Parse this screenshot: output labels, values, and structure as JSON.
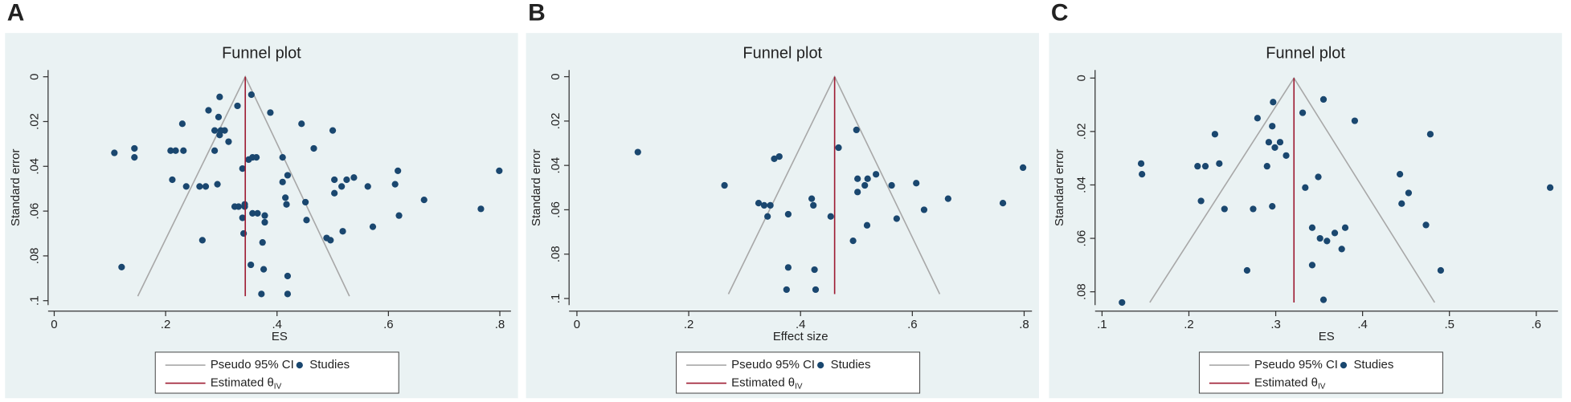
{
  "chart_data": [
    {
      "type": "scatter",
      "panel_label": "A",
      "title": "Funnel plot",
      "xlabel": "ES",
      "ylabel": "Standard error",
      "xlim": [
        -0.011,
        0.82
      ],
      "ylim": [
        0.102,
        -0.003
      ],
      "xticks": [
        0,
        {
          "value": 0.2,
          "label": ".2"
        },
        {
          "value": 0.4,
          "label": ".4"
        },
        {
          "value": 0.6,
          "label": ".6"
        },
        {
          "value": 0.8,
          "label": ".8"
        }
      ],
      "yticks": [
        0,
        {
          "value": 0.02,
          "label": ".02"
        },
        {
          "value": 0.04,
          "label": ".04"
        },
        {
          "value": 0.06,
          "label": ".06"
        },
        {
          "value": 0.08,
          "label": ".08"
        },
        {
          "value": 0.1,
          "label": ".1"
        }
      ],
      "legend": "bottom",
      "series": [
        {
          "name": "Pseudo 95% CI",
          "type": "line",
          "color": "#a8a8a8",
          "x": [
            0.15,
            0.343,
            0.53
          ],
          "values": [
            0.098,
            0,
            0.098
          ]
        },
        {
          "name": "Studies",
          "type": "scatter",
          "color": "#1a476f",
          "x": [
            0.108,
            0.144,
            0.144,
            0.209,
            0.218,
            0.232,
            0.23,
            0.212,
            0.237,
            0.261,
            0.272,
            0.293,
            0.277,
            0.297,
            0.295,
            0.288,
            0.299,
            0.306,
            0.297,
            0.288,
            0.313,
            0.329,
            0.354,
            0.388,
            0.324,
            0.331,
            0.342,
            0.342,
            0.338,
            0.34,
            0.338,
            0.356,
            0.349,
            0.363,
            0.356,
            0.365,
            0.378,
            0.378,
            0.374,
            0.353,
            0.376,
            0.372,
            0.419,
            0.419,
            0.41,
            0.419,
            0.41,
            0.415,
            0.417,
            0.451,
            0.453,
            0.444,
            0.466,
            0.489,
            0.496,
            0.518,
            0.5,
            0.503,
            0.503,
            0.516,
            0.525,
            0.538,
            0.563,
            0.572,
            0.612,
            0.617,
            0.619,
            0.664,
            0.766,
            0.799,
            0.121,
            0.266
          ],
          "values": [
            0.034,
            0.032,
            0.036,
            0.033,
            0.033,
            0.033,
            0.021,
            0.046,
            0.049,
            0.049,
            0.049,
            0.048,
            0.015,
            0.009,
            0.018,
            0.024,
            0.024,
            0.024,
            0.026,
            0.033,
            0.029,
            0.013,
            0.008,
            0.016,
            0.058,
            0.058,
            0.058,
            0.057,
            0.063,
            0.07,
            0.041,
            0.036,
            0.037,
            0.036,
            0.061,
            0.061,
            0.062,
            0.065,
            0.074,
            0.084,
            0.086,
            0.097,
            0.089,
            0.097,
            0.036,
            0.044,
            0.047,
            0.054,
            0.057,
            0.056,
            0.064,
            0.021,
            0.032,
            0.072,
            0.073,
            0.069,
            0.024,
            0.046,
            0.052,
            0.049,
            0.046,
            0.045,
            0.049,
            0.067,
            0.048,
            0.042,
            0.062,
            0.055,
            0.059,
            0.042,
            0.085,
            0.073
          ]
        },
        {
          "name": "Estimated θ",
          "subscript": "IV",
          "type": "line",
          "color": "#9e1b32",
          "x": [
            0.343,
            0.343
          ],
          "values": [
            0,
            0.098
          ]
        }
      ]
    },
    {
      "type": "scatter",
      "panel_label": "B",
      "title": "Funnel plot",
      "xlabel": "Effect size",
      "ylabel": "Standard error",
      "xlim": [
        -0.014,
        0.814
      ],
      "ylim": [
        0.103,
        -0.003
      ],
      "xticks": [
        0,
        {
          "value": 0.2,
          "label": ".2"
        },
        {
          "value": 0.4,
          "label": ".4"
        },
        {
          "value": 0.6,
          "label": ".6"
        },
        {
          "value": 0.8,
          "label": ".8"
        }
      ],
      "yticks": [
        0,
        {
          "value": 0.02,
          "label": ".02"
        },
        {
          "value": 0.04,
          "label": ".04"
        },
        {
          "value": 0.06,
          "label": ".06"
        },
        {
          "value": 0.08,
          "label": ".08"
        },
        {
          "value": 0.1,
          "label": ".1"
        }
      ],
      "legend": "bottom",
      "series": [
        {
          "name": "Pseudo 95% CI",
          "type": "line",
          "color": "#a8a8a8",
          "x": [
            0.271,
            0.461,
            0.649
          ],
          "values": [
            0.098,
            0,
            0.098
          ]
        },
        {
          "name": "Studies",
          "type": "scatter",
          "color": "#1a476f",
          "x": [
            0.109,
            0.264,
            0.325,
            0.335,
            0.346,
            0.341,
            0.353,
            0.362,
            0.378,
            0.42,
            0.423,
            0.378,
            0.375,
            0.425,
            0.427,
            0.454,
            0.468,
            0.5,
            0.502,
            0.502,
            0.515,
            0.52,
            0.535,
            0.494,
            0.519,
            0.563,
            0.572,
            0.607,
            0.621,
            0.664,
            0.762,
            0.798
          ],
          "values": [
            0.034,
            0.049,
            0.057,
            0.058,
            0.058,
            0.063,
            0.037,
            0.036,
            0.062,
            0.055,
            0.058,
            0.086,
            0.096,
            0.087,
            0.096,
            0.063,
            0.032,
            0.024,
            0.046,
            0.052,
            0.049,
            0.046,
            0.044,
            0.074,
            0.067,
            0.049,
            0.064,
            0.048,
            0.06,
            0.055,
            0.057,
            0.041
          ]
        },
        {
          "name": "Estimated θ",
          "subscript": "IV",
          "type": "line",
          "color": "#9e1b32",
          "x": [
            0.461,
            0.461
          ],
          "values": [
            0,
            0.098
          ]
        }
      ]
    },
    {
      "type": "scatter",
      "panel_label": "C",
      "title": "Funnel plot",
      "xlabel": "ES",
      "ylabel": "Standard error",
      "xlim": [
        0.092,
        0.625
      ],
      "ylim": [
        0.085,
        -0.003
      ],
      "xticks": [
        {
          "value": 0.1,
          "label": ".1"
        },
        {
          "value": 0.2,
          "label": ".2"
        },
        {
          "value": 0.3,
          "label": ".3"
        },
        {
          "value": 0.4,
          "label": ".4"
        },
        {
          "value": 0.5,
          "label": ".5"
        },
        {
          "value": 0.6,
          "label": ".6"
        }
      ],
      "yticks": [
        0,
        {
          "value": 0.02,
          "label": ".02"
        },
        {
          "value": 0.04,
          "label": ".04"
        },
        {
          "value": 0.06,
          "label": ".06"
        },
        {
          "value": 0.08,
          "label": ".08"
        }
      ],
      "legend": "bottom",
      "series": [
        {
          "name": "Pseudo 95% CI",
          "type": "line",
          "color": "#a8a8a8",
          "x": [
            0.155,
            0.321,
            0.483
          ],
          "values": [
            0.084,
            0,
            0.084
          ]
        },
        {
          "name": "Studies",
          "type": "scatter",
          "color": "#1a476f",
          "x": [
            0.123,
            0.145,
            0.146,
            0.21,
            0.219,
            0.235,
            0.23,
            0.214,
            0.241,
            0.279,
            0.297,
            0.296,
            0.292,
            0.305,
            0.312,
            0.299,
            0.29,
            0.274,
            0.296,
            0.267,
            0.331,
            0.355,
            0.391,
            0.334,
            0.349,
            0.342,
            0.351,
            0.359,
            0.368,
            0.376,
            0.38,
            0.342,
            0.355,
            0.443,
            0.445,
            0.453,
            0.473,
            0.478,
            0.49,
            0.616
          ],
          "values": [
            0.084,
            0.032,
            0.036,
            0.033,
            0.033,
            0.032,
            0.021,
            0.046,
            0.049,
            0.015,
            0.009,
            0.018,
            0.024,
            0.024,
            0.029,
            0.026,
            0.033,
            0.049,
            0.048,
            0.072,
            0.013,
            0.008,
            0.016,
            0.041,
            0.037,
            0.056,
            0.06,
            0.061,
            0.058,
            0.064,
            0.056,
            0.07,
            0.083,
            0.036,
            0.047,
            0.043,
            0.055,
            0.021,
            0.072,
            0.041
          ]
        },
        {
          "name": "Estimated θ",
          "subscript": "IV",
          "type": "line",
          "color": "#9e1b32",
          "x": [
            0.321,
            0.321
          ],
          "values": [
            0,
            0.084
          ]
        }
      ]
    }
  ]
}
